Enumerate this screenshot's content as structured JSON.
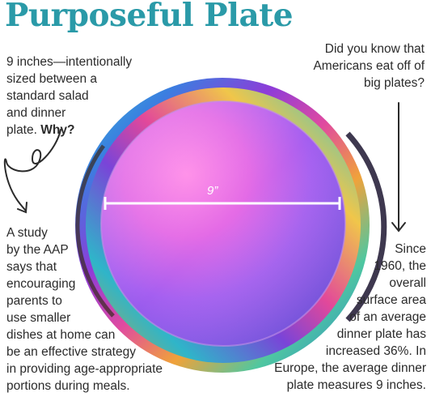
{
  "title": "Purposeful Plate",
  "left_top": {
    "lines": [
      "9 inches—intentionally",
      "sized between a",
      "standard salad",
      "and dinner"
    ],
    "last_prefix": "plate. ",
    "last_bold": "Why?"
  },
  "right_top": {
    "lines": [
      "Did you know that",
      "Americans eat off of",
      "big plates?"
    ]
  },
  "left_bottom": {
    "lines": [
      "A study",
      "by the AAP",
      "says that",
      "encouraging",
      "parents to",
      "use smaller",
      "dishes at home can",
      "be an effective strategy",
      "in providing age-appropriate",
      "portions during meals."
    ]
  },
  "right_bottom": {
    "lines": [
      "Since",
      "1960, the",
      "overall",
      "surface area",
      "of an average",
      "dinner plate has",
      "increased 36%. In",
      "Europe, the average dinner",
      "plate measures 9 inches."
    ]
  },
  "plate": {
    "dimension_label": "9”"
  },
  "colors": {
    "title": "#2a9aa8",
    "text": "#2b2b2b"
  },
  "icons": [
    "curly-arrow-icon",
    "down-arrow-icon"
  ]
}
